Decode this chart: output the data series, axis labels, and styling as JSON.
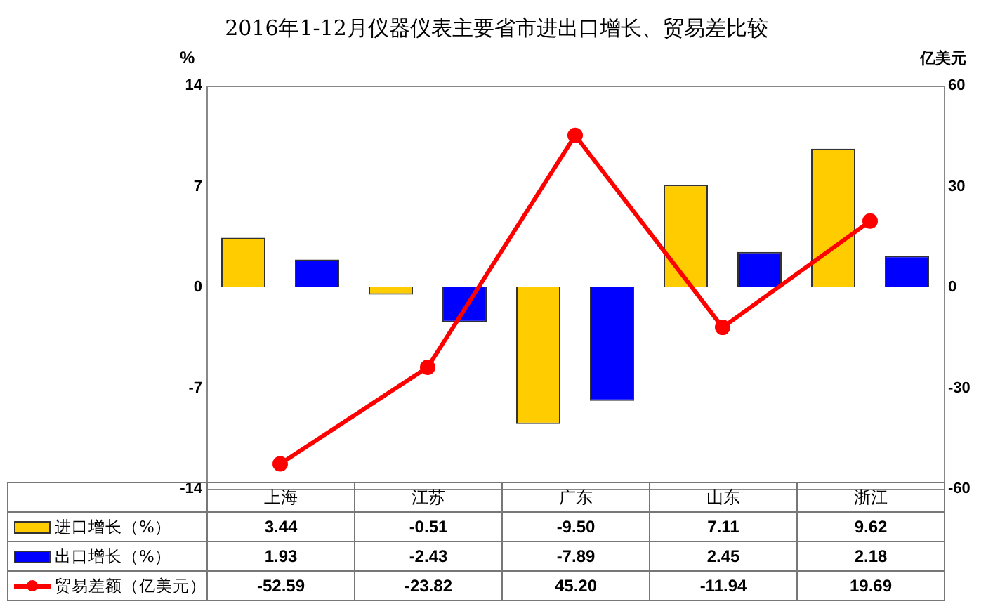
{
  "chart_data": {
    "type": "bar",
    "title": "2016年1-12月仪器仪表主要省市进出口增长、贸易差比较",
    "ylabel": "%",
    "y2label": "亿美元",
    "categories": [
      "上海",
      "江苏",
      "广东",
      "山东",
      "浙江"
    ],
    "series": [
      {
        "name": "进口增长（%）",
        "color": "#ffcc00",
        "values": [
          3.44,
          -0.51,
          -9.5,
          7.11,
          9.62
        ],
        "value_labels": [
          "3.44",
          "-0.51",
          "-9.50",
          "7.11",
          "9.62"
        ]
      },
      {
        "name": "出口增长（%）",
        "color": "#0000ff",
        "values": [
          1.93,
          -2.43,
          -7.89,
          2.45,
          2.18
        ],
        "value_labels": [
          "1.93",
          "-2.43",
          "-7.89",
          "2.45",
          "2.18"
        ]
      },
      {
        "name": "贸易差额（亿美元）",
        "type": "line",
        "axis": "y2",
        "color": "#ff0000",
        "marker": "circle",
        "values": [
          -52.59,
          -23.82,
          45.2,
          -11.94,
          19.69
        ],
        "value_labels": [
          "-52.59",
          "-23.82",
          "45.20",
          "-11.94",
          "19.69"
        ]
      }
    ],
    "ylim": [
      -14,
      14
    ],
    "yticks": [
      -14,
      -7,
      0,
      7,
      14
    ],
    "y2lim": [
      -60,
      60
    ],
    "y2ticks": [
      -60,
      -30,
      0,
      30,
      60
    ],
    "grid": false,
    "legend": "bottom left"
  }
}
